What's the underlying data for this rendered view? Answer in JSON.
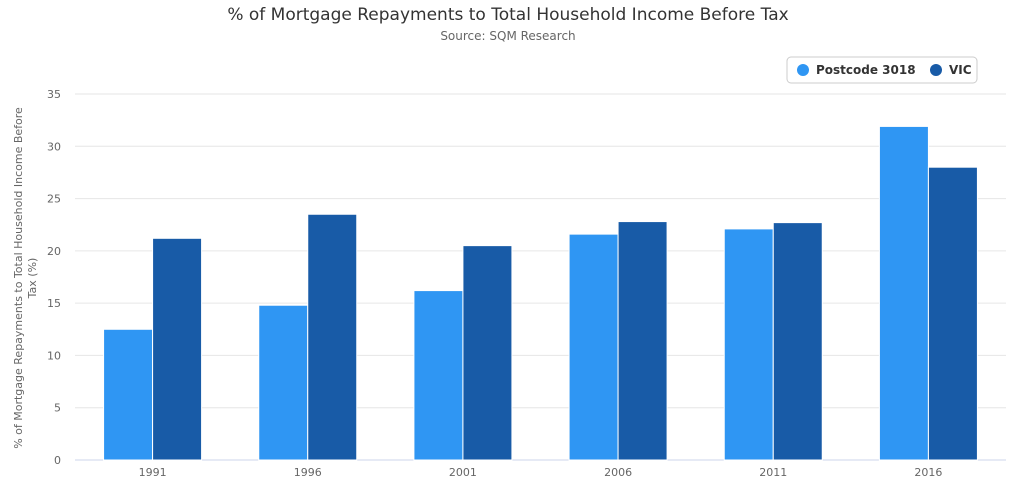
{
  "chart_data": {
    "type": "bar",
    "title": "% of Mortgage Repayments to Total Household Income Before Tax",
    "subtitle": "Source: SQM Research",
    "xlabel": "",
    "ylabel_lines": [
      "% of Mortgage Repayments to Total Household Income Before",
      "Tax (%)"
    ],
    "categories": [
      "1991",
      "1996",
      "2001",
      "2006",
      "2011",
      "2016"
    ],
    "series": [
      {
        "name": "Postcode 3018",
        "color": "#2f96f3",
        "values": [
          12.5,
          14.8,
          16.2,
          21.6,
          22.1,
          31.9
        ]
      },
      {
        "name": "VIC",
        "color": "#185ba7",
        "values": [
          21.2,
          23.5,
          20.5,
          22.8,
          22.7,
          28.0
        ]
      }
    ],
    "ylim": [
      0,
      35
    ],
    "yticks": [
      0,
      5,
      10,
      15,
      20,
      25,
      30,
      35
    ],
    "grid": true,
    "legend_position": "top-right"
  }
}
